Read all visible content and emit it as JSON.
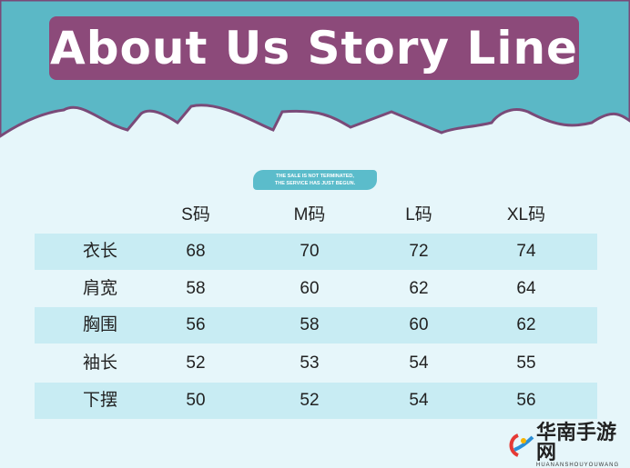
{
  "title": "About Us Story Line",
  "banner": {
    "line1": "THE SALE IS NOT TERMINATED,",
    "line2": "THE SERVICE HAS JUST BEGUN."
  },
  "table": {
    "headers": [
      "",
      "S码",
      "M码",
      "L码",
      "XL码"
    ],
    "rows": [
      [
        "衣长",
        "68",
        "70",
        "72",
        "74"
      ],
      [
        "肩宽",
        "58",
        "60",
        "62",
        "64"
      ],
      [
        "胸围",
        "56",
        "58",
        "60",
        "62"
      ],
      [
        "袖长",
        "52",
        "53",
        "54",
        "55"
      ],
      [
        "下摆",
        "50",
        "52",
        "54",
        "56"
      ]
    ]
  },
  "watermark": {
    "name": "华南手游网",
    "sub": "HUANANSHOUYOUWANG"
  },
  "colors": {
    "teal": "#5bb8c6",
    "purple": "#8c4a7a",
    "light": "#e6f6fa",
    "stripe": "#c8ecf3"
  }
}
